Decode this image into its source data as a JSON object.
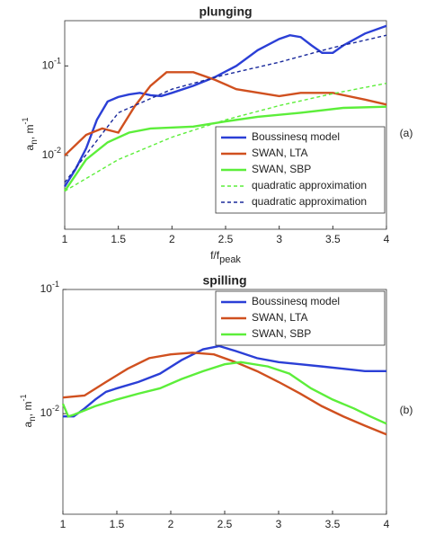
{
  "chart_data": [
    {
      "type": "line",
      "title": "plunging",
      "annotation": "(a)",
      "xlabel": "f/fpeak",
      "ylabel": "an, m-1",
      "xlim": [
        1,
        4
      ],
      "xticks": [
        1,
        1.5,
        2,
        2.5,
        3,
        3.5,
        4
      ],
      "ylim": [
        0.0015,
        0.32
      ],
      "yscale": "log",
      "yticks": [
        {
          "value": 0.01,
          "label": "10-2"
        },
        {
          "value": 0.1,
          "label": "10-1"
        }
      ],
      "legend": "lower right",
      "series": [
        {
          "name": "Boussinesq model",
          "color": "#2b3fd6",
          "dash": false,
          "x": [
            1,
            1.1,
            1.2,
            1.3,
            1.4,
            1.5,
            1.6,
            1.7,
            1.8,
            1.9,
            2.0,
            2.2,
            2.4,
            2.6,
            2.8,
            3.0,
            3.1,
            3.2,
            3.3,
            3.4,
            3.5,
            3.6,
            3.8,
            4.0
          ],
          "values": [
            0.0045,
            0.007,
            0.012,
            0.025,
            0.04,
            0.045,
            0.048,
            0.05,
            0.047,
            0.046,
            0.05,
            0.06,
            0.075,
            0.1,
            0.15,
            0.2,
            0.22,
            0.21,
            0.17,
            0.14,
            0.14,
            0.17,
            0.23,
            0.28
          ]
        },
        {
          "name": "SWAN, LTA",
          "color": "#d0501f",
          "dash": false,
          "x": [
            1,
            1.2,
            1.35,
            1.5,
            1.65,
            1.8,
            1.95,
            2.2,
            2.4,
            2.6,
            3.0,
            3.2,
            3.5,
            3.8,
            4.0
          ],
          "values": [
            0.01,
            0.017,
            0.02,
            0.018,
            0.035,
            0.06,
            0.085,
            0.085,
            0.07,
            0.055,
            0.046,
            0.05,
            0.05,
            0.042,
            0.037
          ]
        },
        {
          "name": "SWAN, SBP",
          "color": "#5cee3a",
          "dash": false,
          "x": [
            1,
            1.2,
            1.4,
            1.6,
            1.8,
            2.2,
            2.5,
            2.8,
            3.2,
            3.6,
            4.0
          ],
          "values": [
            0.004,
            0.009,
            0.014,
            0.018,
            0.02,
            0.021,
            0.024,
            0.027,
            0.03,
            0.034,
            0.035
          ]
        },
        {
          "name": "quadratic approximation",
          "color": "#5cee3a",
          "dash": true,
          "x": [
            1,
            1.5,
            2,
            2.5,
            3,
            3.5,
            4
          ],
          "values": [
            0.004,
            0.009,
            0.016,
            0.025,
            0.036,
            0.049,
            0.064
          ]
        },
        {
          "name": "quadratic approximation",
          "color": "#1a2a9c",
          "dash": true,
          "x": [
            1,
            1.5,
            2,
            2.5,
            3,
            3.5,
            4
          ],
          "values": [
            0.005,
            0.03,
            0.055,
            0.08,
            0.11,
            0.16,
            0.22
          ]
        }
      ]
    },
    {
      "type": "line",
      "title": "spilling",
      "annotation": "(b)",
      "xlabel": "f/fpeak",
      "ylabel": "an, m-1",
      "xlim": [
        1,
        4
      ],
      "xticks": [
        1,
        1.5,
        2,
        2.5,
        3,
        3.5,
        4
      ],
      "ylim": [
        0.00155,
        0.1
      ],
      "yscale": "log",
      "yticks": [
        {
          "value": 0.01,
          "label": "10-2"
        },
        {
          "value": 0.1,
          "label": "10-1"
        }
      ],
      "legend": "upper right",
      "series": [
        {
          "name": "Boussinesq model",
          "color": "#2b3fd6",
          "dash": false,
          "x": [
            1,
            1.1,
            1.2,
            1.3,
            1.4,
            1.5,
            1.7,
            1.9,
            2.1,
            2.3,
            2.45,
            2.6,
            2.8,
            3.0,
            3.2,
            3.4,
            3.6,
            3.8,
            4.0
          ],
          "values": [
            0.0095,
            0.0095,
            0.011,
            0.013,
            0.015,
            0.016,
            0.018,
            0.021,
            0.027,
            0.033,
            0.035,
            0.032,
            0.028,
            0.026,
            0.025,
            0.024,
            0.023,
            0.022,
            0.022
          ]
        },
        {
          "name": "SWAN, LTA",
          "color": "#d0501f",
          "dash": false,
          "x": [
            1,
            1.2,
            1.4,
            1.6,
            1.8,
            2.0,
            2.2,
            2.4,
            2.6,
            2.8,
            3.0,
            3.2,
            3.4,
            3.6,
            3.8,
            4.0
          ],
          "values": [
            0.0135,
            0.014,
            0.018,
            0.023,
            0.028,
            0.03,
            0.031,
            0.03,
            0.026,
            0.022,
            0.018,
            0.0145,
            0.0115,
            0.0095,
            0.008,
            0.0068
          ]
        },
        {
          "name": "SWAN, SBP",
          "color": "#5cee3a",
          "dash": false,
          "x": [
            1,
            1.05,
            1.1,
            1.3,
            1.5,
            1.7,
            1.9,
            2.1,
            2.3,
            2.5,
            2.65,
            2.9,
            3.1,
            3.3,
            3.5,
            3.7,
            3.85,
            4.0
          ],
          "values": [
            0.012,
            0.0095,
            0.0098,
            0.0115,
            0.013,
            0.0145,
            0.016,
            0.019,
            0.022,
            0.025,
            0.026,
            0.024,
            0.021,
            0.016,
            0.013,
            0.011,
            0.0095,
            0.0083
          ]
        }
      ]
    }
  ]
}
